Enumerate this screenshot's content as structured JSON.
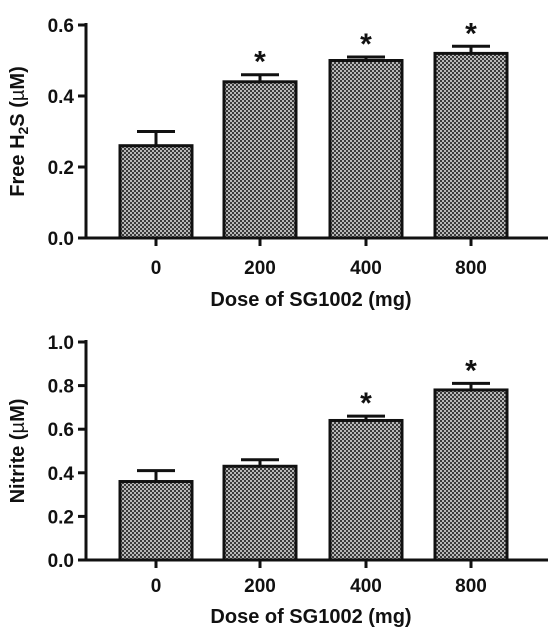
{
  "chart_data": [
    {
      "type": "bar",
      "categories": [
        "0",
        "200",
        "400",
        "800"
      ],
      "values": [
        0.26,
        0.44,
        0.5,
        0.52
      ],
      "errors": [
        0.04,
        0.02,
        0.01,
        0.02
      ],
      "significance": [
        "",
        "*",
        "*",
        "*"
      ],
      "ylabel": "Free H2S (µM)",
      "ylabel_parts": {
        "pre": "Free H",
        "sub": "2",
        "post": "S (",
        "greek": "µ",
        "unit_end": "M)"
      },
      "xlabel": "Dose of SG1002 (mg)",
      "ylim": [
        0,
        0.6
      ],
      "yticks": [
        "0.0",
        "0.2",
        "0.4",
        "0.6"
      ],
      "grid": false,
      "colors": {
        "bar_fill": "#9a9a9a",
        "bar_pattern": "#333333",
        "axis": "#111111"
      }
    },
    {
      "type": "bar",
      "categories": [
        "0",
        "200",
        "400",
        "800"
      ],
      "values": [
        0.36,
        0.43,
        0.64,
        0.78
      ],
      "errors": [
        0.05,
        0.03,
        0.02,
        0.03
      ],
      "significance": [
        "",
        "",
        "*",
        "*"
      ],
      "ylabel": "Nitrite (µM)",
      "ylabel_parts": {
        "pre": "Nitrite (",
        "greek": "µ",
        "unit_end": "M)"
      },
      "xlabel": "Dose of SG1002 (mg)",
      "ylim": [
        0,
        1.0
      ],
      "yticks": [
        "0.0",
        "0.2",
        "0.4",
        "0.6",
        "0.8",
        "1.0"
      ],
      "grid": false,
      "colors": {
        "bar_fill": "#9a9a9a",
        "bar_pattern": "#333333",
        "axis": "#111111"
      }
    }
  ]
}
